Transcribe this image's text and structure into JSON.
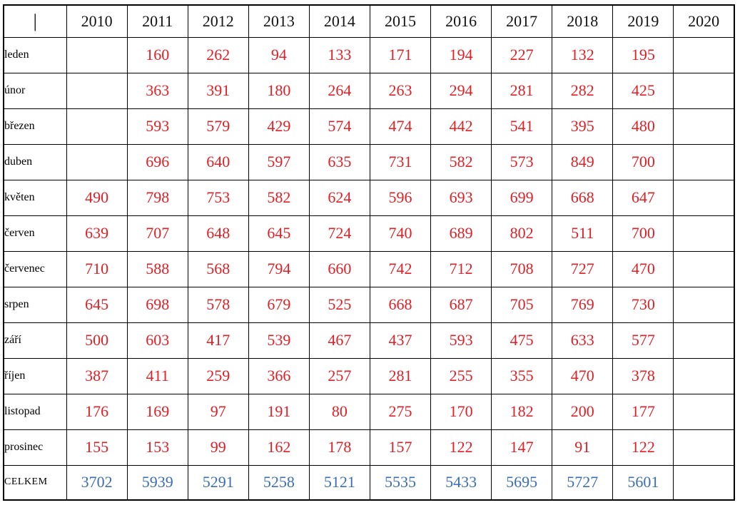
{
  "colors": {
    "value_red": "#e31e25",
    "total_blue": "#3b6eb5",
    "border_black": "#000000",
    "header_black": "#121212"
  },
  "table": {
    "corner_label": "|",
    "years": [
      "2010",
      "2011",
      "2012",
      "2013",
      "2014",
      "2015",
      "2016",
      "2017",
      "2018",
      "2019",
      "2020"
    ],
    "rows": [
      {
        "label": "leden",
        "values": [
          "",
          "160",
          "262",
          "94",
          "133",
          "171",
          "194",
          "227",
          "132",
          "195",
          ""
        ]
      },
      {
        "label": "únor",
        "values": [
          "",
          "363",
          "391",
          "180",
          "264",
          "263",
          "294",
          "281",
          "282",
          "425",
          ""
        ]
      },
      {
        "label": "březen",
        "values": [
          "",
          "593",
          "579",
          "429",
          "574",
          "474",
          "442",
          "541",
          "395",
          "480",
          ""
        ]
      },
      {
        "label": "duben",
        "values": [
          "",
          "696",
          "640",
          "597",
          "635",
          "731",
          "582",
          "573",
          "849",
          "700",
          ""
        ]
      },
      {
        "label": "květen",
        "values": [
          "490",
          "798",
          "753",
          "582",
          "624",
          "596",
          "693",
          "699",
          "668",
          "647",
          ""
        ]
      },
      {
        "label": "červen",
        "values": [
          "639",
          "707",
          "648",
          "645",
          "724",
          "740",
          "689",
          "802",
          "511",
          "700",
          ""
        ]
      },
      {
        "label": "červenec",
        "values": [
          "710",
          "588",
          "568",
          "794",
          "660",
          "742",
          "712",
          "708",
          "727",
          "470",
          ""
        ]
      },
      {
        "label": "srpen",
        "values": [
          "645",
          "698",
          "578",
          "679",
          "525",
          "668",
          "687",
          "705",
          "769",
          "730",
          ""
        ]
      },
      {
        "label": "září",
        "values": [
          "500",
          "603",
          "417",
          "539",
          "467",
          "437",
          "593",
          "475",
          "633",
          "577",
          ""
        ]
      },
      {
        "label": "říjen",
        "values": [
          "387",
          "411",
          "259",
          "366",
          "257",
          "281",
          "255",
          "355",
          "470",
          "378",
          ""
        ]
      },
      {
        "label": "listopad",
        "values": [
          "176",
          "169",
          "97",
          "191",
          "80",
          "275",
          "170",
          "182",
          "200",
          "177",
          ""
        ]
      },
      {
        "label": "prosinec",
        "values": [
          "155",
          "153",
          "99",
          "162",
          "178",
          "157",
          "122",
          "147",
          "91",
          "122",
          ""
        ]
      }
    ],
    "totals": {
      "label": "CELKEM",
      "values": [
        "3702",
        "5939",
        "5291",
        "5258",
        "5121",
        "5535",
        "5433",
        "5695",
        "5727",
        "5601",
        ""
      ]
    }
  },
  "chart_data": {
    "type": "table",
    "title": "",
    "categories": [
      "2010",
      "2011",
      "2012",
      "2013",
      "2014",
      "2015",
      "2016",
      "2017",
      "2018",
      "2019",
      "2020"
    ],
    "series": [
      {
        "name": "leden",
        "values": [
          null,
          160,
          262,
          94,
          133,
          171,
          194,
          227,
          132,
          195,
          null
        ]
      },
      {
        "name": "únor",
        "values": [
          null,
          363,
          391,
          180,
          264,
          263,
          294,
          281,
          282,
          425,
          null
        ]
      },
      {
        "name": "březen",
        "values": [
          null,
          593,
          579,
          429,
          574,
          474,
          442,
          541,
          395,
          480,
          null
        ]
      },
      {
        "name": "duben",
        "values": [
          null,
          696,
          640,
          597,
          635,
          731,
          582,
          573,
          849,
          700,
          null
        ]
      },
      {
        "name": "květen",
        "values": [
          490,
          798,
          753,
          582,
          624,
          596,
          693,
          699,
          668,
          647,
          null
        ]
      },
      {
        "name": "červen",
        "values": [
          639,
          707,
          648,
          645,
          724,
          740,
          689,
          802,
          511,
          700,
          null
        ]
      },
      {
        "name": "červenec",
        "values": [
          710,
          588,
          568,
          794,
          660,
          742,
          712,
          708,
          727,
          470,
          null
        ]
      },
      {
        "name": "srpen",
        "values": [
          645,
          698,
          578,
          679,
          525,
          668,
          687,
          705,
          769,
          730,
          null
        ]
      },
      {
        "name": "září",
        "values": [
          500,
          603,
          417,
          539,
          467,
          437,
          593,
          475,
          633,
          577,
          null
        ]
      },
      {
        "name": "říjen",
        "values": [
          387,
          411,
          259,
          366,
          257,
          281,
          255,
          355,
          470,
          378,
          null
        ]
      },
      {
        "name": "listopad",
        "values": [
          176,
          169,
          97,
          191,
          80,
          275,
          170,
          182,
          200,
          177,
          null
        ]
      },
      {
        "name": "prosinec",
        "values": [
          155,
          153,
          99,
          162,
          178,
          157,
          122,
          147,
          91,
          122,
          null
        ]
      },
      {
        "name": "CELKEM",
        "values": [
          3702,
          5939,
          5291,
          5258,
          5121,
          5535,
          5433,
          5695,
          5727,
          5601,
          null
        ]
      }
    ]
  }
}
